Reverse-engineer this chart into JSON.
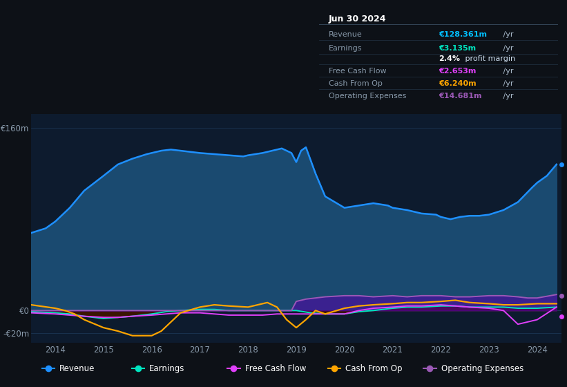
{
  "bg_color": "#0d1117",
  "chart_bg": "#0d1b2e",
  "grid_color": "#1e3a5a",
  "axis_label_color": "#8899aa",
  "zero_line_color": "#2a3f55",
  "x_ticks": [
    2014,
    2015,
    2016,
    2017,
    2018,
    2019,
    2020,
    2021,
    2022,
    2023,
    2024
  ],
  "info_box": {
    "date": "Jun 30 2024",
    "rows": [
      {
        "label": "Revenue",
        "value": "€128.361m",
        "suffix": " /yr",
        "value_color": "#00bfff"
      },
      {
        "label": "Earnings",
        "value": "€3.135m",
        "suffix": " /yr",
        "value_color": "#00e5c0"
      },
      {
        "label": "",
        "value": "2.4%",
        "suffix": " profit margin",
        "value_color": "#ffffff"
      },
      {
        "label": "Free Cash Flow",
        "value": "€2.653m",
        "suffix": " /yr",
        "value_color": "#e040fb"
      },
      {
        "label": "Cash From Op",
        "value": "€6.240m",
        "suffix": " /yr",
        "value_color": "#ffa500"
      },
      {
        "label": "Operating Expenses",
        "value": "€14.681m",
        "suffix": " /yr",
        "value_color": "#9b59b6"
      }
    ]
  },
  "legend": [
    {
      "label": "Revenue",
      "color": "#1e90ff"
    },
    {
      "label": "Earnings",
      "color": "#00e5c0"
    },
    {
      "label": "Free Cash Flow",
      "color": "#e040fb"
    },
    {
      "label": "Cash From Op",
      "color": "#ffa500"
    },
    {
      "label": "Operating Expenses",
      "color": "#9b59b6"
    }
  ],
  "revenue": {
    "color": "#1e90ff",
    "fill_color": "#1a4a70",
    "x": [
      2013.5,
      2013.8,
      2014.0,
      2014.3,
      2014.6,
      2015.0,
      2015.3,
      2015.6,
      2015.9,
      2016.0,
      2016.2,
      2016.4,
      2016.6,
      2016.8,
      2017.0,
      2017.3,
      2017.6,
      2017.9,
      2018.0,
      2018.3,
      2018.5,
      2018.7,
      2018.9,
      2019.0,
      2019.1,
      2019.2,
      2019.4,
      2019.6,
      2019.8,
      2020.0,
      2020.3,
      2020.6,
      2020.9,
      2021.0,
      2021.3,
      2021.6,
      2021.9,
      2022.0,
      2022.2,
      2022.4,
      2022.6,
      2022.8,
      2023.0,
      2023.3,
      2023.6,
      2023.9,
      2024.0,
      2024.2,
      2024.4
    ],
    "y": [
      68,
      72,
      78,
      90,
      105,
      118,
      128,
      133,
      137,
      138,
      140,
      141,
      140,
      139,
      138,
      137,
      136,
      135,
      136,
      138,
      140,
      142,
      138,
      130,
      140,
      143,
      120,
      100,
      95,
      90,
      92,
      94,
      92,
      90,
      88,
      85,
      84,
      82,
      80,
      82,
      83,
      83,
      84,
      88,
      95,
      108,
      112,
      118,
      128
    ]
  },
  "earnings": {
    "color": "#00e5c0",
    "dark_fill": "#3d1a00",
    "x": [
      2013.5,
      2014.0,
      2014.3,
      2014.6,
      2015.0,
      2015.3,
      2015.6,
      2016.0,
      2016.3,
      2016.6,
      2017.0,
      2017.3,
      2017.6,
      2018.0,
      2018.3,
      2018.6,
      2019.0,
      2019.3,
      2019.6,
      2020.0,
      2020.3,
      2020.6,
      2021.0,
      2021.3,
      2021.6,
      2022.0,
      2022.3,
      2022.6,
      2023.0,
      2023.3,
      2023.6,
      2024.0,
      2024.4
    ],
    "y": [
      -1,
      -2,
      -3,
      -5,
      -7,
      -6,
      -5,
      -3,
      -1,
      0,
      1,
      1,
      0,
      0,
      0,
      0,
      0,
      -2,
      -3,
      -3,
      -1,
      0,
      2,
      3,
      3,
      4,
      4,
      3,
      3,
      3,
      2,
      2,
      3
    ]
  },
  "fcf": {
    "color": "#e040fb",
    "x": [
      2013.5,
      2014.0,
      2014.3,
      2014.6,
      2015.0,
      2015.3,
      2015.6,
      2016.0,
      2016.3,
      2016.6,
      2017.0,
      2017.3,
      2017.6,
      2018.0,
      2018.3,
      2018.6,
      2019.0,
      2019.3,
      2019.6,
      2020.0,
      2020.3,
      2020.6,
      2021.0,
      2021.3,
      2021.6,
      2022.0,
      2022.3,
      2022.6,
      2023.0,
      2023.3,
      2023.6,
      2024.0,
      2024.4
    ],
    "y": [
      -2,
      -3,
      -4,
      -5,
      -6,
      -6,
      -5,
      -4,
      -3,
      -2,
      -2,
      -3,
      -4,
      -4,
      -4,
      -3,
      -3,
      -3,
      -3,
      -3,
      0,
      2,
      3,
      4,
      4,
      5,
      4,
      3,
      2,
      0,
      -12,
      -8,
      3
    ]
  },
  "cashfromop": {
    "color": "#ffa500",
    "x": [
      2013.5,
      2014.0,
      2014.2,
      2014.4,
      2014.6,
      2015.0,
      2015.3,
      2015.6,
      2016.0,
      2016.2,
      2016.4,
      2016.6,
      2017.0,
      2017.3,
      2017.6,
      2018.0,
      2018.2,
      2018.4,
      2018.6,
      2018.8,
      2019.0,
      2019.2,
      2019.4,
      2019.6,
      2020.0,
      2020.3,
      2020.6,
      2021.0,
      2021.3,
      2021.6,
      2022.0,
      2022.3,
      2022.6,
      2023.0,
      2023.3,
      2023.6,
      2024.0,
      2024.4
    ],
    "y": [
      5,
      2,
      0,
      -3,
      -8,
      -15,
      -18,
      -22,
      -22,
      -18,
      -10,
      -2,
      3,
      5,
      4,
      3,
      5,
      7,
      3,
      -8,
      -15,
      -8,
      0,
      -3,
      2,
      4,
      5,
      6,
      7,
      7,
      8,
      9,
      7,
      6,
      5,
      5,
      6,
      6
    ]
  },
  "opex": {
    "color": "#9b59b6",
    "fill_color": "#5500aa",
    "x": [
      2013.5,
      2014.0,
      2015.0,
      2016.0,
      2017.0,
      2018.0,
      2018.9,
      2019.0,
      2019.2,
      2019.4,
      2019.6,
      2020.0,
      2020.3,
      2020.6,
      2021.0,
      2021.3,
      2021.6,
      2022.0,
      2022.3,
      2022.6,
      2023.0,
      2023.3,
      2023.6,
      2023.8,
      2024.0,
      2024.4
    ],
    "y": [
      0,
      0,
      0,
      0,
      0,
      0,
      0,
      8,
      10,
      11,
      12,
      13,
      13,
      12,
      13,
      12,
      13,
      13,
      12,
      12,
      13,
      13,
      12,
      11,
      11,
      14
    ]
  }
}
